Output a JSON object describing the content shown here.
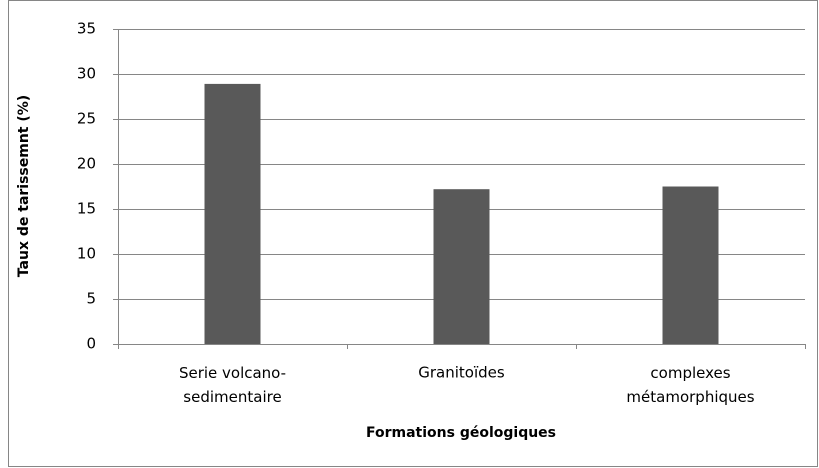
{
  "chart_data": {
    "type": "bar",
    "categories": [
      "Serie volcano-\nsedimentaire",
      "Granitoïdes",
      "complexes\nmétamorphiques"
    ],
    "values": [
      28.9,
      17.2,
      17.5
    ],
    "color": "#595959",
    "ylabel": "Taux de tarissemnt (%)",
    "xlabel": "Formations géologiques",
    "ylim": [
      0,
      35
    ],
    "yticks": [
      0,
      5,
      10,
      15,
      20,
      25,
      30,
      35
    ],
    "grid": true
  }
}
